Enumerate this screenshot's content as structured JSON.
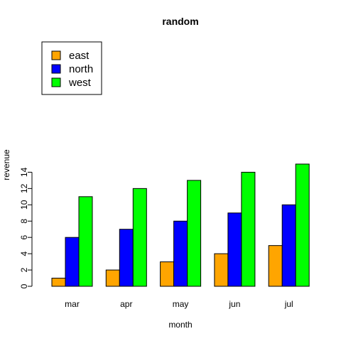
{
  "chart_data": {
    "type": "bar",
    "title": "random",
    "xlabel": "month",
    "ylabel": "revenue",
    "categories": [
      "mar",
      "apr",
      "may",
      "jun",
      "jul"
    ],
    "series": [
      {
        "name": "east",
        "color": "#FFA500",
        "values": [
          1,
          2,
          3,
          4,
          5
        ]
      },
      {
        "name": "north",
        "color": "#0000FF",
        "values": [
          6,
          7,
          8,
          9,
          10
        ]
      },
      {
        "name": "west",
        "color": "#00FF00",
        "values": [
          11,
          12,
          13,
          14,
          15
        ]
      }
    ],
    "yticks": [
      0,
      2,
      4,
      6,
      8,
      10,
      12,
      14
    ],
    "ylim": [
      0,
      15
    ],
    "grid": false,
    "legend_position": "top-left"
  }
}
